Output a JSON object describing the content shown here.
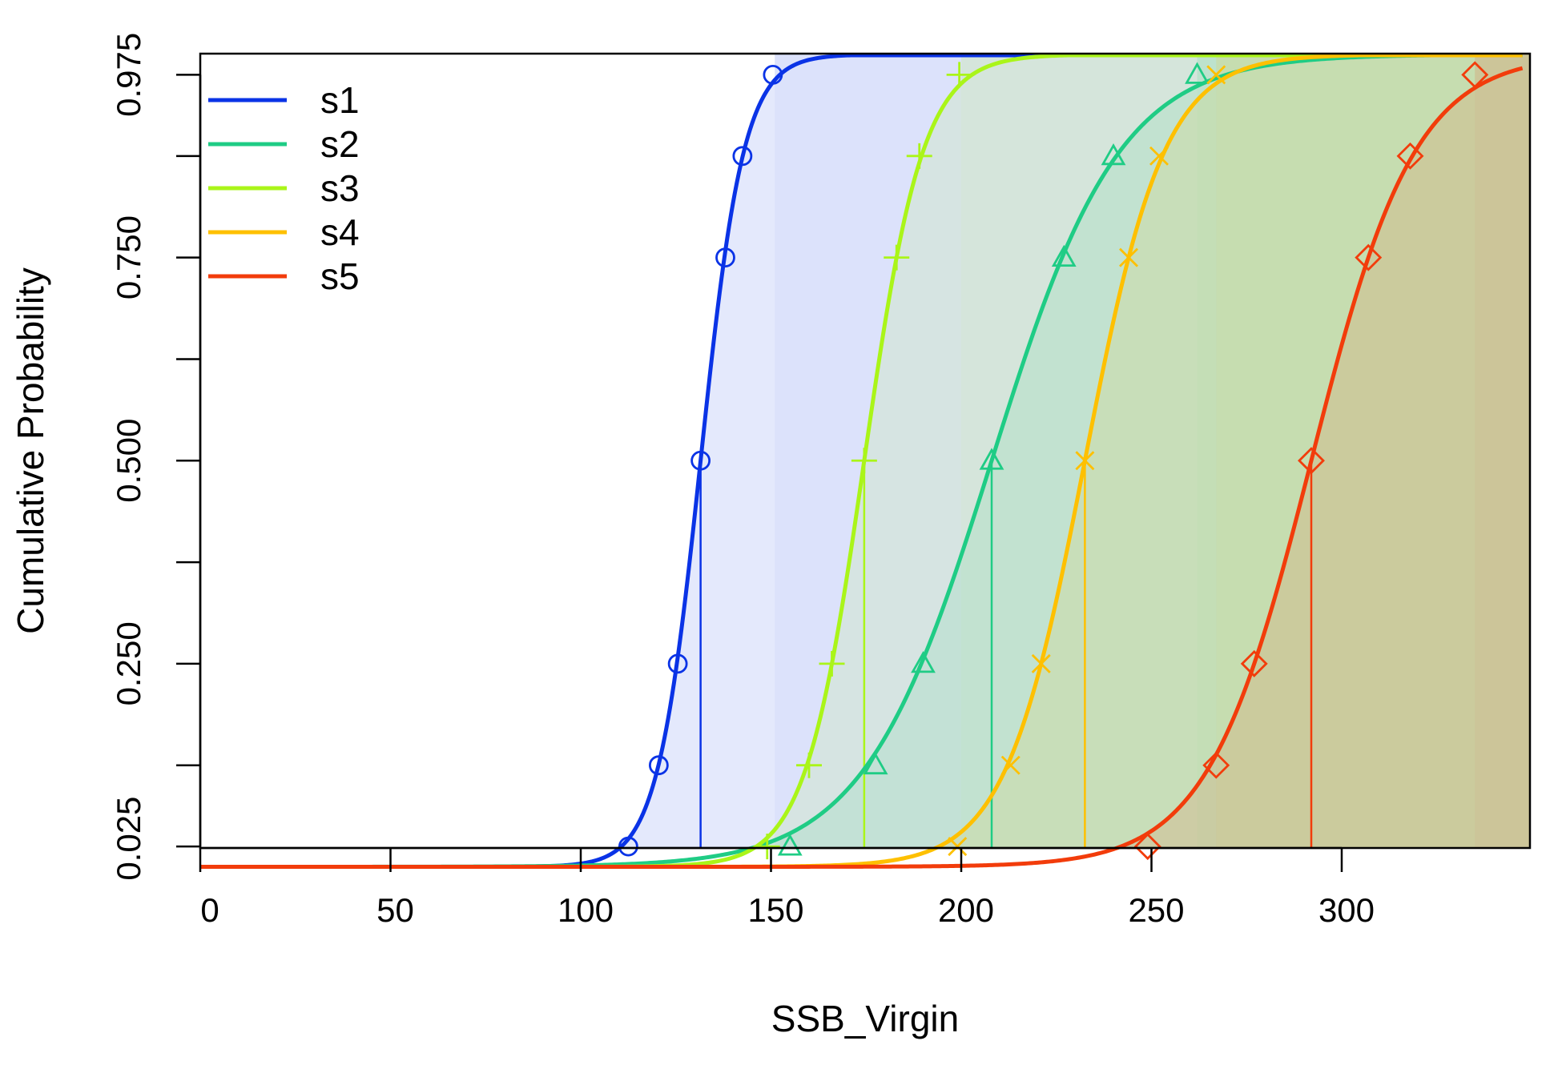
{
  "chart_data": {
    "type": "line",
    "xlabel": "SSB_Virgin",
    "ylabel": "Cumulative Probability",
    "xlim": [
      0,
      350
    ],
    "ylim": [
      0,
      1
    ],
    "x_ticks": [
      0,
      50,
      100,
      150,
      200,
      250,
      300
    ],
    "y_ticks": [
      0.025,
      0.125,
      0.25,
      0.375,
      0.5,
      0.625,
      0.75,
      0.875,
      0.975
    ],
    "y_tick_labels": [
      "0.025",
      "",
      "0.250",
      "",
      "0.500",
      "",
      "0.750",
      "",
      "0.975"
    ],
    "grid": false,
    "legend": "top-left",
    "marker_probabilities": [
      0.025,
      0.125,
      0.25,
      0.5,
      0.75,
      0.875,
      0.975
    ],
    "series": [
      {
        "name": "s1",
        "color": "#0a33e6",
        "marker": "circle",
        "median": 131.5,
        "quantiles": [
          112.5,
          120.5,
          125.5,
          131.5,
          138,
          142.5,
          150.5
        ],
        "shade_end": 151
      },
      {
        "name": "s2",
        "color": "#1fcc85",
        "marker": "triangle",
        "median": 208,
        "quantiles": [
          155,
          177.5,
          190,
          208,
          227,
          240,
          262
        ],
        "shade_end": 262
      },
      {
        "name": "s3",
        "color": "#aaf519",
        "marker": "plus",
        "median": 174.5,
        "quantiles": [
          149,
          160,
          166,
          174.5,
          183,
          189,
          199.5
        ],
        "shade_end": 200
      },
      {
        "name": "s4",
        "color": "#fec000",
        "marker": "x",
        "median": 232.5,
        "quantiles": [
          199,
          213,
          221,
          232.5,
          244,
          252,
          267
        ],
        "shade_end": 267
      },
      {
        "name": "s5",
        "color": "#f23c0b",
        "marker": "diamond",
        "median": 292,
        "quantiles": [
          249,
          267,
          277,
          292,
          307,
          318,
          335
        ],
        "shade_end": 335
      }
    ]
  }
}
